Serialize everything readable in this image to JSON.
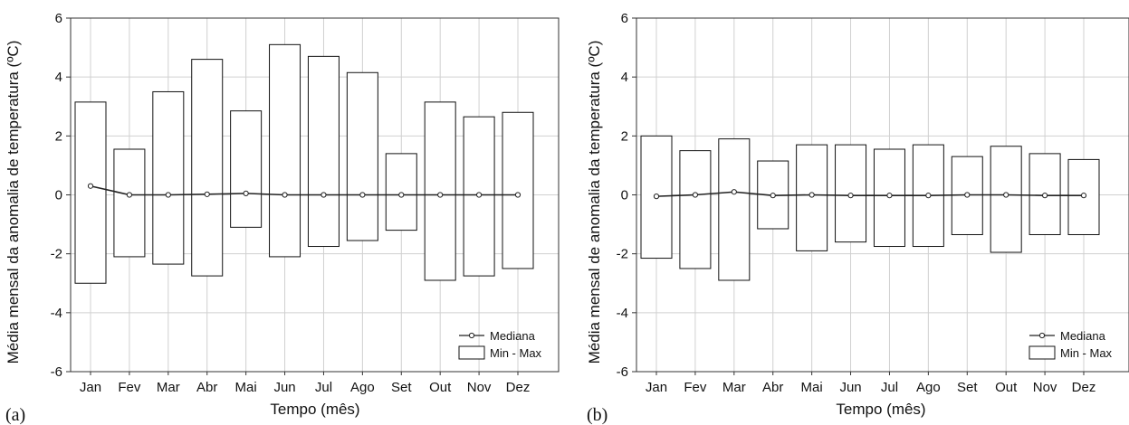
{
  "chart_data": [
    {
      "type": "box",
      "panel_label": "(a)",
      "xlabel": "Tempo (mês)",
      "ylabel": "Média mensal da anomalia de temperatura (ºC)",
      "ylim": [
        -6,
        6
      ],
      "yticks": [
        -6,
        -4,
        -2,
        0,
        2,
        4,
        6
      ],
      "grid": true,
      "legend_position": "bottom-right",
      "categories": [
        "Jan",
        "Fev",
        "Mar",
        "Abr",
        "Mai",
        "Jun",
        "Jul",
        "Ago",
        "Set",
        "Out",
        "Nov",
        "Dez"
      ],
      "series": [
        {
          "name": "Mediana",
          "values": [
            0.3,
            0.0,
            0.0,
            0.02,
            0.05,
            0.0,
            0.0,
            0.0,
            0.0,
            0.0,
            0.0,
            0.0
          ]
        },
        {
          "name": "Min - Max",
          "min": [
            -3.0,
            -2.1,
            -2.35,
            -2.75,
            -1.1,
            -2.1,
            -1.75,
            -1.55,
            -1.2,
            -2.9,
            -2.75,
            -2.5
          ],
          "max": [
            3.15,
            1.55,
            3.5,
            4.6,
            2.85,
            5.1,
            4.7,
            4.15,
            1.4,
            3.15,
            2.65,
            2.8
          ]
        }
      ]
    },
    {
      "type": "box",
      "panel_label": "(b)",
      "xlabel": "Tempo (mês)",
      "ylabel": "Média mensal de anomalia da temperatura (ºC)",
      "ylim": [
        -6,
        6
      ],
      "yticks": [
        -6,
        -4,
        -2,
        0,
        2,
        4,
        6
      ],
      "grid": true,
      "legend_position": "bottom-right",
      "categories": [
        "Jan",
        "Fev",
        "Mar",
        "Abr",
        "Mai",
        "Jun",
        "Jul",
        "Ago",
        "Set",
        "Out",
        "Nov",
        "Dez"
      ],
      "series": [
        {
          "name": "Mediana",
          "values": [
            -0.05,
            0.0,
            0.1,
            -0.02,
            0.0,
            -0.02,
            -0.02,
            -0.02,
            0.0,
            0.0,
            -0.02,
            -0.02
          ]
        },
        {
          "name": "Min - Max",
          "min": [
            -2.15,
            -2.5,
            -2.9,
            -1.15,
            -1.9,
            -1.6,
            -1.75,
            -1.75,
            -1.35,
            -1.95,
            -1.35,
            -1.35
          ],
          "max": [
            2.0,
            1.5,
            1.9,
            1.15,
            1.7,
            1.7,
            1.55,
            1.7,
            1.3,
            1.65,
            1.4,
            1.2
          ]
        }
      ]
    }
  ],
  "legend": {
    "median_label": "Mediana",
    "minmax_label": "Min - Max"
  },
  "colors": {
    "box_stroke": "#111111",
    "median_line": "#222222",
    "grid": "#d0d0d0",
    "marker_fill": "#ffffff"
  }
}
